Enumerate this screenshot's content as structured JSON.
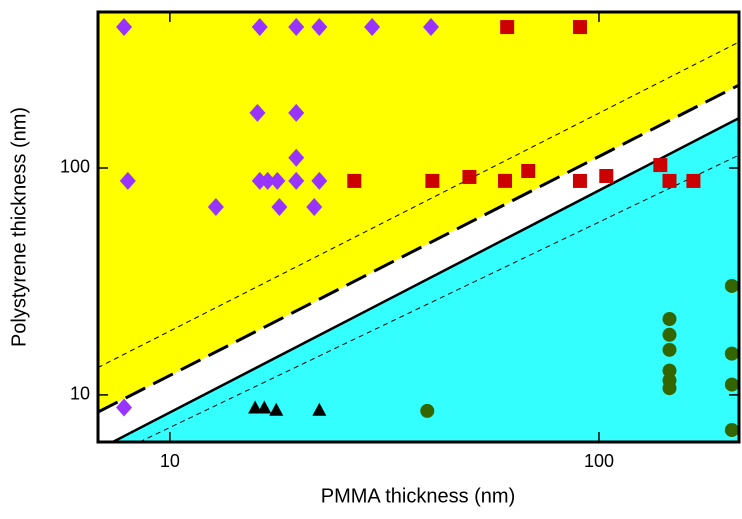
{
  "chart_data": {
    "type": "scatter",
    "xlabel": "PMMA thickness (nm)",
    "ylabel": "Polystyrene thickness (nm)",
    "xscale": "log",
    "yscale": "log",
    "xlim": [
      6.8,
      212
    ],
    "ylim": [
      6.2,
      487
    ],
    "xticks": [
      10,
      100
    ],
    "yticks": [
      10,
      100
    ],
    "lines": [
      {
        "x": [
          6.8,
          212
        ],
        "y": [
          8.4,
          232
        ],
        "color": "#000000",
        "style": "dashed",
        "width": 3,
        "fill_above": "#ffff00"
      },
      {
        "x": [
          7.36,
          212
        ],
        "y": [
          6.2,
          166
        ],
        "color": "#000000",
        "style": "solid",
        "width": 2.5,
        "fill_below": "#33ffff"
      },
      {
        "x": [
          6.8,
          212
        ],
        "y": [
          13.2,
          359
        ],
        "color": "#000000",
        "style": "dashed",
        "width": 1
      },
      {
        "x": [
          8.5,
          212
        ],
        "y": [
          6.2,
          114
        ],
        "color": "#000000",
        "style": "dashed",
        "width": 1
      }
    ],
    "series": [
      {
        "color": "#9933ff",
        "marker": "diamond",
        "x": [
          7.82,
          16.2,
          19.7,
          22.3,
          29.6,
          40.6,
          16.0,
          19.7,
          19.7,
          7.98,
          16.2,
          16.9,
          17.8,
          19.7,
          22.3,
          12.8,
          18.0,
          21.7,
          7.82
        ],
        "values": [
          418,
          418,
          418,
          418,
          418,
          418,
          175,
          175,
          111,
          87.7,
          87.7,
          87.7,
          87.7,
          87.7,
          87.7,
          67.3,
          67.3,
          67.3,
          8.8
        ]
      },
      {
        "color": "#cc0000",
        "marker": "square",
        "x": [
          61.1,
          90.3,
          26.9,
          40.9,
          49.9,
          60.4,
          68.4,
          90.3,
          104,
          139,
          146,
          166
        ],
        "values": [
          418,
          418,
          87.7,
          87.7,
          91.3,
          87.7,
          97,
          87.7,
          92.2,
          103,
          87.7,
          87.7
        ]
      },
      {
        "color": "#000000",
        "marker": "triangle",
        "x": [
          15.8,
          16.6,
          17.7,
          22.3
        ],
        "values": [
          8.8,
          8.8,
          8.6,
          8.6
        ]
      },
      {
        "color": "#336600",
        "marker": "circle",
        "x": [
          39.8,
          146,
          146,
          146,
          146,
          146,
          146,
          204,
          204,
          204,
          204
        ],
        "values": [
          8.5,
          21.6,
          18.4,
          15.8,
          12.8,
          11.6,
          10.7,
          30.2,
          15.2,
          11.1,
          7.0
        ]
      }
    ]
  }
}
